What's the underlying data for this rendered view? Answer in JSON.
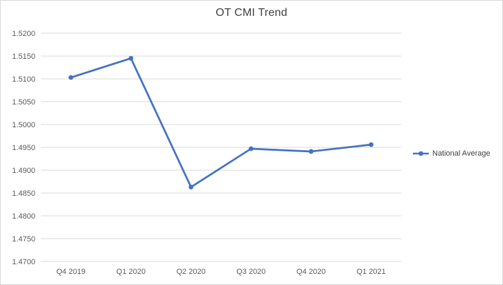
{
  "chart": {
    "legend": {
      "label": "National Average"
    }
  },
  "chart_data": {
    "type": "line",
    "title": "OT CMI Trend",
    "categories": [
      "Q4 2019",
      "Q1 2020",
      "Q2 2020",
      "Q3 2020",
      "Q4 2020",
      "Q1 2021"
    ],
    "series": [
      {
        "name": "National Average",
        "values": [
          1.5103,
          1.5145,
          1.4863,
          1.4947,
          1.4941,
          1.4956
        ]
      }
    ],
    "xlabel": "",
    "ylabel": "",
    "ylim": [
      1.47,
      1.52
    ],
    "ytick_step": 0.005,
    "ytick_decimals": 4,
    "grid": true,
    "legend_position": "right",
    "line_color": "#4472C4",
    "gridline_color": "#d9d9d9",
    "axis_text_color": "#595959",
    "title_color": "#404040"
  }
}
